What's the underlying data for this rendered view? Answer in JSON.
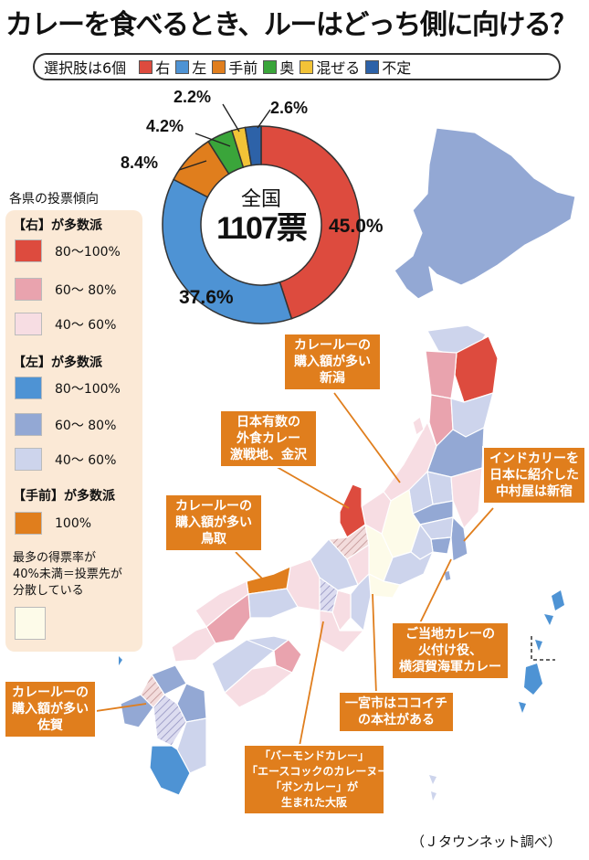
{
  "title": "カレーを食べるとき、ルーはどっち側に向ける？",
  "options_bar": {
    "lead": "選択肢は6個",
    "options": [
      {
        "label": "右",
        "color": "#dd4b3e"
      },
      {
        "label": "左",
        "color": "#4e93d4"
      },
      {
        "label": "手前",
        "color": "#e07e1d"
      },
      {
        "label": "奥",
        "color": "#3aa53a"
      },
      {
        "label": "混ぜる",
        "color": "#f2c337"
      },
      {
        "label": "不定",
        "color": "#2d62a8"
      }
    ]
  },
  "donut": {
    "center_label": "全国",
    "total": "1107票",
    "slices": [
      {
        "option": "右",
        "percent": 45.0,
        "label": "45.0%",
        "color": "#dd4b3e"
      },
      {
        "option": "左",
        "percent": 37.6,
        "label": "37.6%",
        "color": "#4e93d4"
      },
      {
        "option": "手前",
        "percent": 8.4,
        "label": "8.4%",
        "color": "#e07e1d"
      },
      {
        "option": "奥",
        "percent": 4.2,
        "label": "4.2%",
        "color": "#3aa53a"
      },
      {
        "option": "混ぜる",
        "percent": 2.2,
        "label": "2.2%",
        "color": "#f2c337"
      },
      {
        "option": "不定",
        "percent": 2.6,
        "label": "2.6%",
        "color": "#2d62a8"
      }
    ]
  },
  "legend": {
    "heading": "各県の投票傾向",
    "groups": [
      {
        "title": "【右】が多数派",
        "items": [
          {
            "label": "80〜100%",
            "color": "#dd4b3e"
          },
          {
            "label": "60〜 80%",
            "color": "#e9a3ae"
          },
          {
            "label": "40〜 60%",
            "color": "#f7dde3"
          }
        ]
      },
      {
        "title": "【左】が多数派",
        "items": [
          {
            "label": "80〜100%",
            "color": "#4e93d4"
          },
          {
            "label": "60〜 80%",
            "color": "#93a8d4"
          },
          {
            "label": "40〜 60%",
            "color": "#cdd4ec"
          }
        ]
      },
      {
        "title": "【手前】が多数派",
        "items": [
          {
            "label": "100%",
            "color": "#e07e1d"
          }
        ]
      }
    ],
    "note_lines": [
      "最多の得票率が",
      "40%未満＝投票先が",
      "分散している"
    ],
    "note_color": "#fdfbe9"
  },
  "callouts": [
    {
      "lines": [
        "カレールーの",
        "購入額が多い",
        "新潟"
      ]
    },
    {
      "lines": [
        "日本有数の",
        "外食カレー",
        "激戦地、金沢"
      ]
    },
    {
      "lines": [
        "インドカリーを",
        "日本に紹介した",
        "中村屋は新宿"
      ]
    },
    {
      "lines": [
        "カレールーの",
        "購入額が多い",
        "鳥取"
      ]
    },
    {
      "lines": [
        "ご当地カレーの",
        "火付け役、",
        "横須賀海軍カレー"
      ]
    },
    {
      "lines": [
        "カレールーの",
        "購入額が多い",
        "佐賀"
      ]
    },
    {
      "lines": [
        "一宮市はココイチ",
        "の本社がある"
      ]
    },
    {
      "lines": [
        "「バーモンドカレー」",
        "「エースコックのカレーヌードル」",
        "「ボンカレー」が",
        "生まれた大阪"
      ]
    }
  ],
  "source": "（Ｊタウンネット調べ）"
}
